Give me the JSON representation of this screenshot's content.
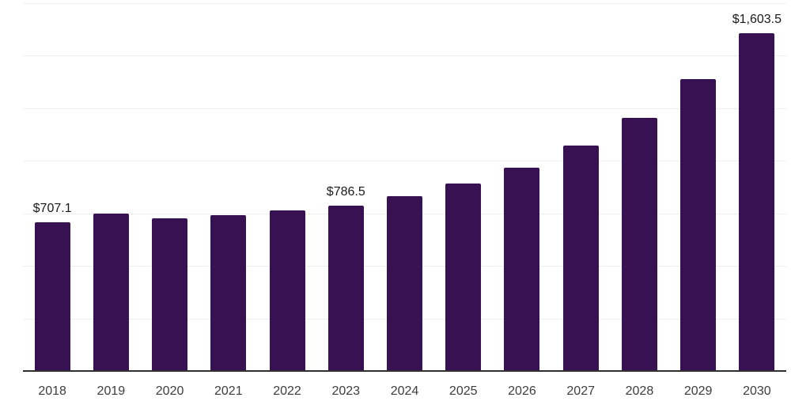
{
  "chart_data": {
    "type": "bar",
    "categories": [
      "2018",
      "2019",
      "2020",
      "2021",
      "2022",
      "2023",
      "2024",
      "2025",
      "2026",
      "2027",
      "2028",
      "2029",
      "2030"
    ],
    "values": [
      707.1,
      749.9,
      727.2,
      739.8,
      761.4,
      786.5,
      832.1,
      890.0,
      966.3,
      1070.8,
      1202.0,
      1386.2,
      1603.5
    ],
    "data_labels": [
      "$707.1",
      null,
      null,
      null,
      null,
      "$786.5",
      null,
      null,
      null,
      null,
      null,
      null,
      "$1,603.5"
    ],
    "ylim": [
      0,
      1750
    ],
    "gridline_step": 250,
    "grid": "horizontal-only",
    "legend_position": "none",
    "colors": {
      "bar": "#371152",
      "axis_line": "#2f2f2f",
      "gridline": "#efefef",
      "data_label_text": "#1a1a1a",
      "tick_label_text": "#3d3d3d",
      "background": "#ffffff"
    }
  }
}
